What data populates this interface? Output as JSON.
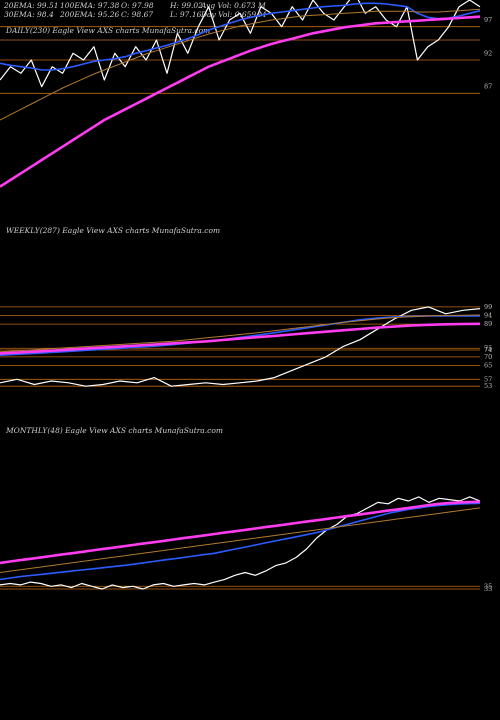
{
  "stats": {
    "ema20": "20EMA: 99.51",
    "ema100": "100EMA: 97.38",
    "open": "O: 97.98",
    "high": "H: 99.02",
    "avg_vol": "Avg Vol: 0.673 M",
    "ema30": "30EMA: 98.4",
    "ema200": "200EMA: 95.26",
    "close": "C: 98.67",
    "low": "L: 97.16",
    "day_vol": "Day Vol: 0.659 M"
  },
  "panels": {
    "daily_title": "DAILY(230) Eagle   View  AXS charts MunafaSutra.com",
    "weekly_title": "WEEKLY(287) Eagle   View  AXS charts MunafaSutra.com",
    "monthly_title": "MONTHLY(48) Eagle   View  AXS charts MunafaSutra.com"
  },
  "colors": {
    "price": "#ffffff",
    "ema_short": "#2c5cff",
    "ema_long": "#ff3cf0",
    "ema_mid": "#b07a30",
    "level_line": "#c06a10",
    "background": "#000000"
  },
  "chart_data": [
    {
      "type": "line",
      "title": "DAILY(230) Eagle   View  AXS charts MunafaSutra.com",
      "ylim": [
        70,
        100
      ],
      "yticks": [
        "97",
        "92",
        "87"
      ],
      "x": [
        0,
        5,
        10,
        15,
        20,
        25,
        30,
        35,
        40,
        45,
        50,
        55,
        60,
        65,
        70,
        75,
        80,
        85,
        90,
        95,
        100,
        105,
        110,
        115,
        120,
        125,
        130,
        135,
        140,
        145,
        150,
        155,
        160,
        165,
        170,
        175,
        180,
        185,
        190,
        195,
        200,
        205,
        210,
        215,
        220,
        225,
        230
      ],
      "series": [
        {
          "role": "price",
          "values": [
            88,
            90,
            89,
            91,
            87,
            90,
            89,
            92,
            91,
            93,
            88,
            92,
            90,
            93,
            91,
            94,
            89,
            95,
            92,
            96,
            99,
            94,
            97,
            98,
            95,
            99,
            98,
            96,
            99,
            97,
            100,
            98,
            97,
            99,
            101,
            98,
            99,
            97,
            96,
            99,
            91,
            93,
            94,
            96,
            99,
            100,
            99
          ]
        },
        {
          "role": "ema_short",
          "values": [
            90.5,
            90.2,
            90,
            89.8,
            89.5,
            89.5,
            89.7,
            90,
            90.4,
            90.8,
            91,
            91.2,
            91.5,
            92,
            92.4,
            92.8,
            93.2,
            93.7,
            94.2,
            94.8,
            95.5,
            96,
            96.5,
            97,
            97.4,
            97.7,
            98,
            98.2,
            98.4,
            98.6,
            98.8,
            99,
            99.1,
            99.2,
            99.4,
            99.5,
            99.5,
            99.4,
            99.2,
            99,
            98,
            97.4,
            97.2,
            97.3,
            97.6,
            98,
            98.4
          ]
        },
        {
          "role": "ema_mid",
          "values": [
            82,
            82.8,
            83.6,
            84.4,
            85.2,
            86,
            86.8,
            87.5,
            88.2,
            88.9,
            89.5,
            90.1,
            90.7,
            91.3,
            91.9,
            92.4,
            92.9,
            93.4,
            93.9,
            94.4,
            94.9,
            95.3,
            95.7,
            96.1,
            96.4,
            96.7,
            97,
            97.2,
            97.4,
            97.6,
            97.7,
            97.8,
            97.9,
            98,
            98.1,
            98.2,
            98.3,
            98.3,
            98.3,
            98.3,
            98.2,
            98.2,
            98.2,
            98.3,
            98.4,
            98.5,
            98.6
          ]
        },
        {
          "role": "ema_long",
          "values": [
            72,
            73,
            74,
            75,
            76,
            77,
            78,
            79,
            80,
            81,
            82,
            82.8,
            83.6,
            84.4,
            85.2,
            86,
            86.8,
            87.6,
            88.4,
            89.2,
            90,
            90.6,
            91.2,
            91.8,
            92.4,
            92.9,
            93.4,
            93.8,
            94.2,
            94.6,
            95,
            95.3,
            95.6,
            95.9,
            96.1,
            96.3,
            96.5,
            96.6,
            96.7,
            96.8,
            96.9,
            97,
            97.1,
            97.2,
            97.3,
            97.4,
            97.5
          ]
        }
      ],
      "levels": [
        96,
        94,
        91,
        86
      ]
    },
    {
      "type": "line",
      "title": "WEEKLY(287) Eagle   View  AXS charts MunafaSutra.com",
      "ylim": [
        45,
        103
      ],
      "yticks": [
        "99",
        "94",
        "89",
        "75",
        "74",
        "70",
        "65",
        "57",
        "53"
      ],
      "x": [
        0,
        10,
        20,
        30,
        40,
        50,
        60,
        70,
        80,
        90,
        100,
        110,
        120,
        130,
        140,
        150,
        160,
        170,
        180,
        190,
        200,
        210,
        220,
        230,
        240,
        250,
        260,
        270,
        280
      ],
      "series": [
        {
          "role": "price",
          "values": [
            55,
            57,
            54,
            56,
            55,
            53,
            54,
            56,
            55,
            58,
            53,
            54,
            55,
            54,
            55,
            56,
            58,
            62,
            66,
            70,
            76,
            80,
            86,
            92,
            97,
            99,
            95,
            97,
            98
          ]
        },
        {
          "role": "ema_short",
          "values": [
            71,
            71.5,
            72,
            72.6,
            73.2,
            73.8,
            74.4,
            75,
            75.6,
            76.2,
            77,
            78,
            79,
            80,
            81.3,
            82.6,
            84,
            85.5,
            87,
            88.5,
            90,
            91.5,
            92.5,
            93.2,
            93.5,
            93.7,
            93.8,
            93.8,
            93.8
          ]
        },
        {
          "role": "ema_mid",
          "values": [
            73,
            73.6,
            74.2,
            74.8,
            75.4,
            76,
            76.6,
            77.2,
            77.8,
            78.4,
            79,
            80,
            81,
            82,
            83,
            84,
            85.2,
            86.4,
            87.6,
            88.8,
            90,
            91,
            92,
            92.8,
            93.4,
            93.8,
            94,
            94.2,
            94.3
          ]
        },
        {
          "role": "ema_long",
          "values": [
            72,
            72.5,
            73,
            73.6,
            74.2,
            74.8,
            75.4,
            76,
            76.6,
            77.2,
            77.8,
            78.4,
            79,
            79.8,
            80.6,
            81.4,
            82.2,
            83,
            83.8,
            84.6,
            85.4,
            86.2,
            87,
            87.6,
            88.2,
            88.6,
            88.9,
            89.1,
            89.2
          ]
        }
      ],
      "levels": [
        99,
        94,
        89,
        75,
        74,
        70,
        65,
        57,
        53
      ]
    },
    {
      "type": "line",
      "title": "MONTHLY(48) Eagle   View  AXS charts MunafaSutra.com",
      "ylim": [
        25,
        105
      ],
      "yticks": [
        "35",
        "33"
      ],
      "x": [
        0,
        1,
        2,
        3,
        4,
        5,
        6,
        7,
        8,
        9,
        10,
        11,
        12,
        13,
        14,
        15,
        16,
        17,
        18,
        19,
        20,
        21,
        22,
        23,
        24,
        25,
        26,
        27,
        28,
        29,
        30,
        31,
        32,
        33,
        34,
        35,
        36,
        37,
        38,
        39,
        40,
        41,
        42,
        43,
        44,
        45,
        46,
        47
      ],
      "series": [
        {
          "role": "price",
          "values": [
            36,
            37,
            36,
            38,
            37,
            35,
            36,
            34,
            37,
            35,
            33,
            36,
            34,
            35,
            33,
            36,
            37,
            35,
            36,
            37,
            36,
            38,
            40,
            43,
            45,
            43,
            46,
            50,
            52,
            56,
            62,
            70,
            76,
            80,
            86,
            88,
            92,
            96,
            95,
            99,
            97,
            100,
            96,
            99,
            98,
            97,
            100,
            97
          ]
        },
        {
          "role": "ema_short",
          "values": [
            40,
            41,
            42,
            42.8,
            43.6,
            44.4,
            45.2,
            46,
            46.8,
            47.6,
            48.4,
            49.2,
            50,
            51,
            52,
            53,
            54,
            55,
            56,
            57,
            58,
            59,
            60.5,
            62,
            63.5,
            65,
            66.5,
            68,
            69.5,
            71,
            72.5,
            74,
            76,
            78,
            80,
            82,
            84,
            86,
            88,
            89.5,
            91,
            92,
            93,
            93.8,
            94.4,
            94.8,
            95.1,
            95.3
          ]
        },
        {
          "role": "ema_mid",
          "values": [
            45,
            46,
            47,
            48,
            49,
            50,
            51,
            52,
            53,
            54,
            55,
            56,
            57,
            58,
            59,
            60,
            61,
            62,
            63,
            64,
            65,
            66,
            67,
            68,
            69,
            70,
            71,
            72,
            73,
            74,
            75,
            76,
            77,
            78,
            79,
            80,
            81,
            82,
            83,
            84,
            85,
            86,
            87,
            88,
            89,
            90,
            91,
            92
          ]
        },
        {
          "role": "ema_long",
          "values": [
            52,
            53,
            54,
            55,
            56,
            57,
            58,
            59,
            60,
            61,
            62,
            63,
            64,
            65,
            66,
            67,
            68,
            69,
            70,
            71,
            72,
            73,
            74,
            75,
            76,
            77,
            78,
            79,
            80,
            81,
            82,
            83,
            84,
            85,
            86,
            87,
            88,
            89,
            90,
            91,
            92,
            93,
            94,
            95,
            95.5,
            96,
            96.3,
            96.5
          ]
        }
      ],
      "levels": [
        35,
        33
      ]
    }
  ]
}
